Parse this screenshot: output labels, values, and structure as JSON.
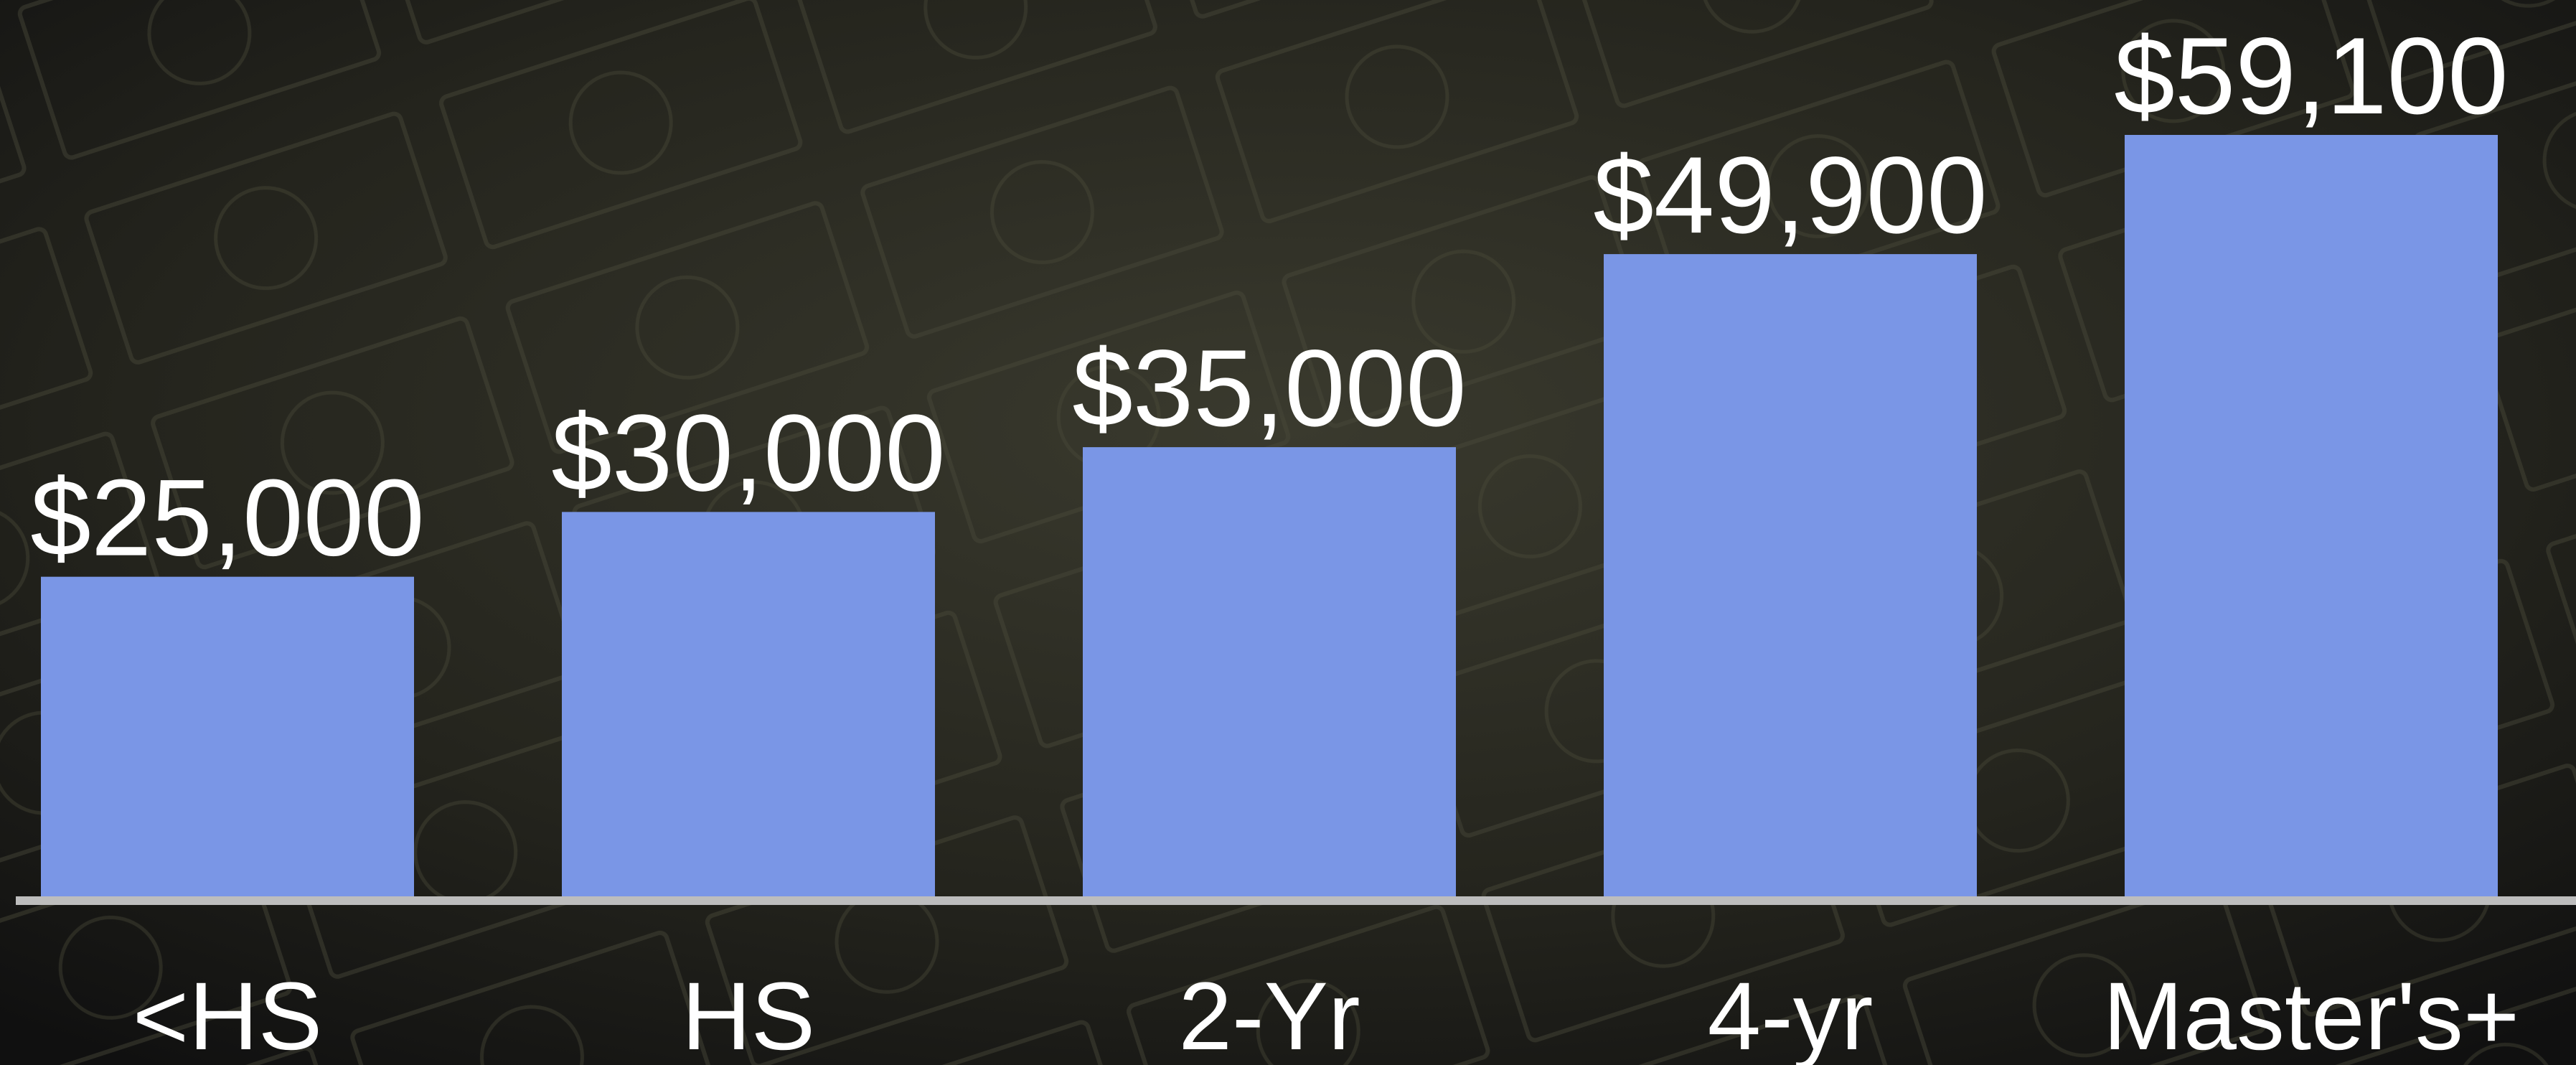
{
  "chart_data": {
    "type": "bar",
    "categories": [
      "<HS",
      "HS",
      "2-Yr",
      "4-yr",
      "Master's+"
    ],
    "values": [
      25000,
      30000,
      35000,
      49900,
      59100
    ],
    "value_labels": [
      "$25,000",
      "$30,000",
      "$35,000",
      "$49,900",
      "$59,100"
    ],
    "color": "#7a96e6"
  }
}
